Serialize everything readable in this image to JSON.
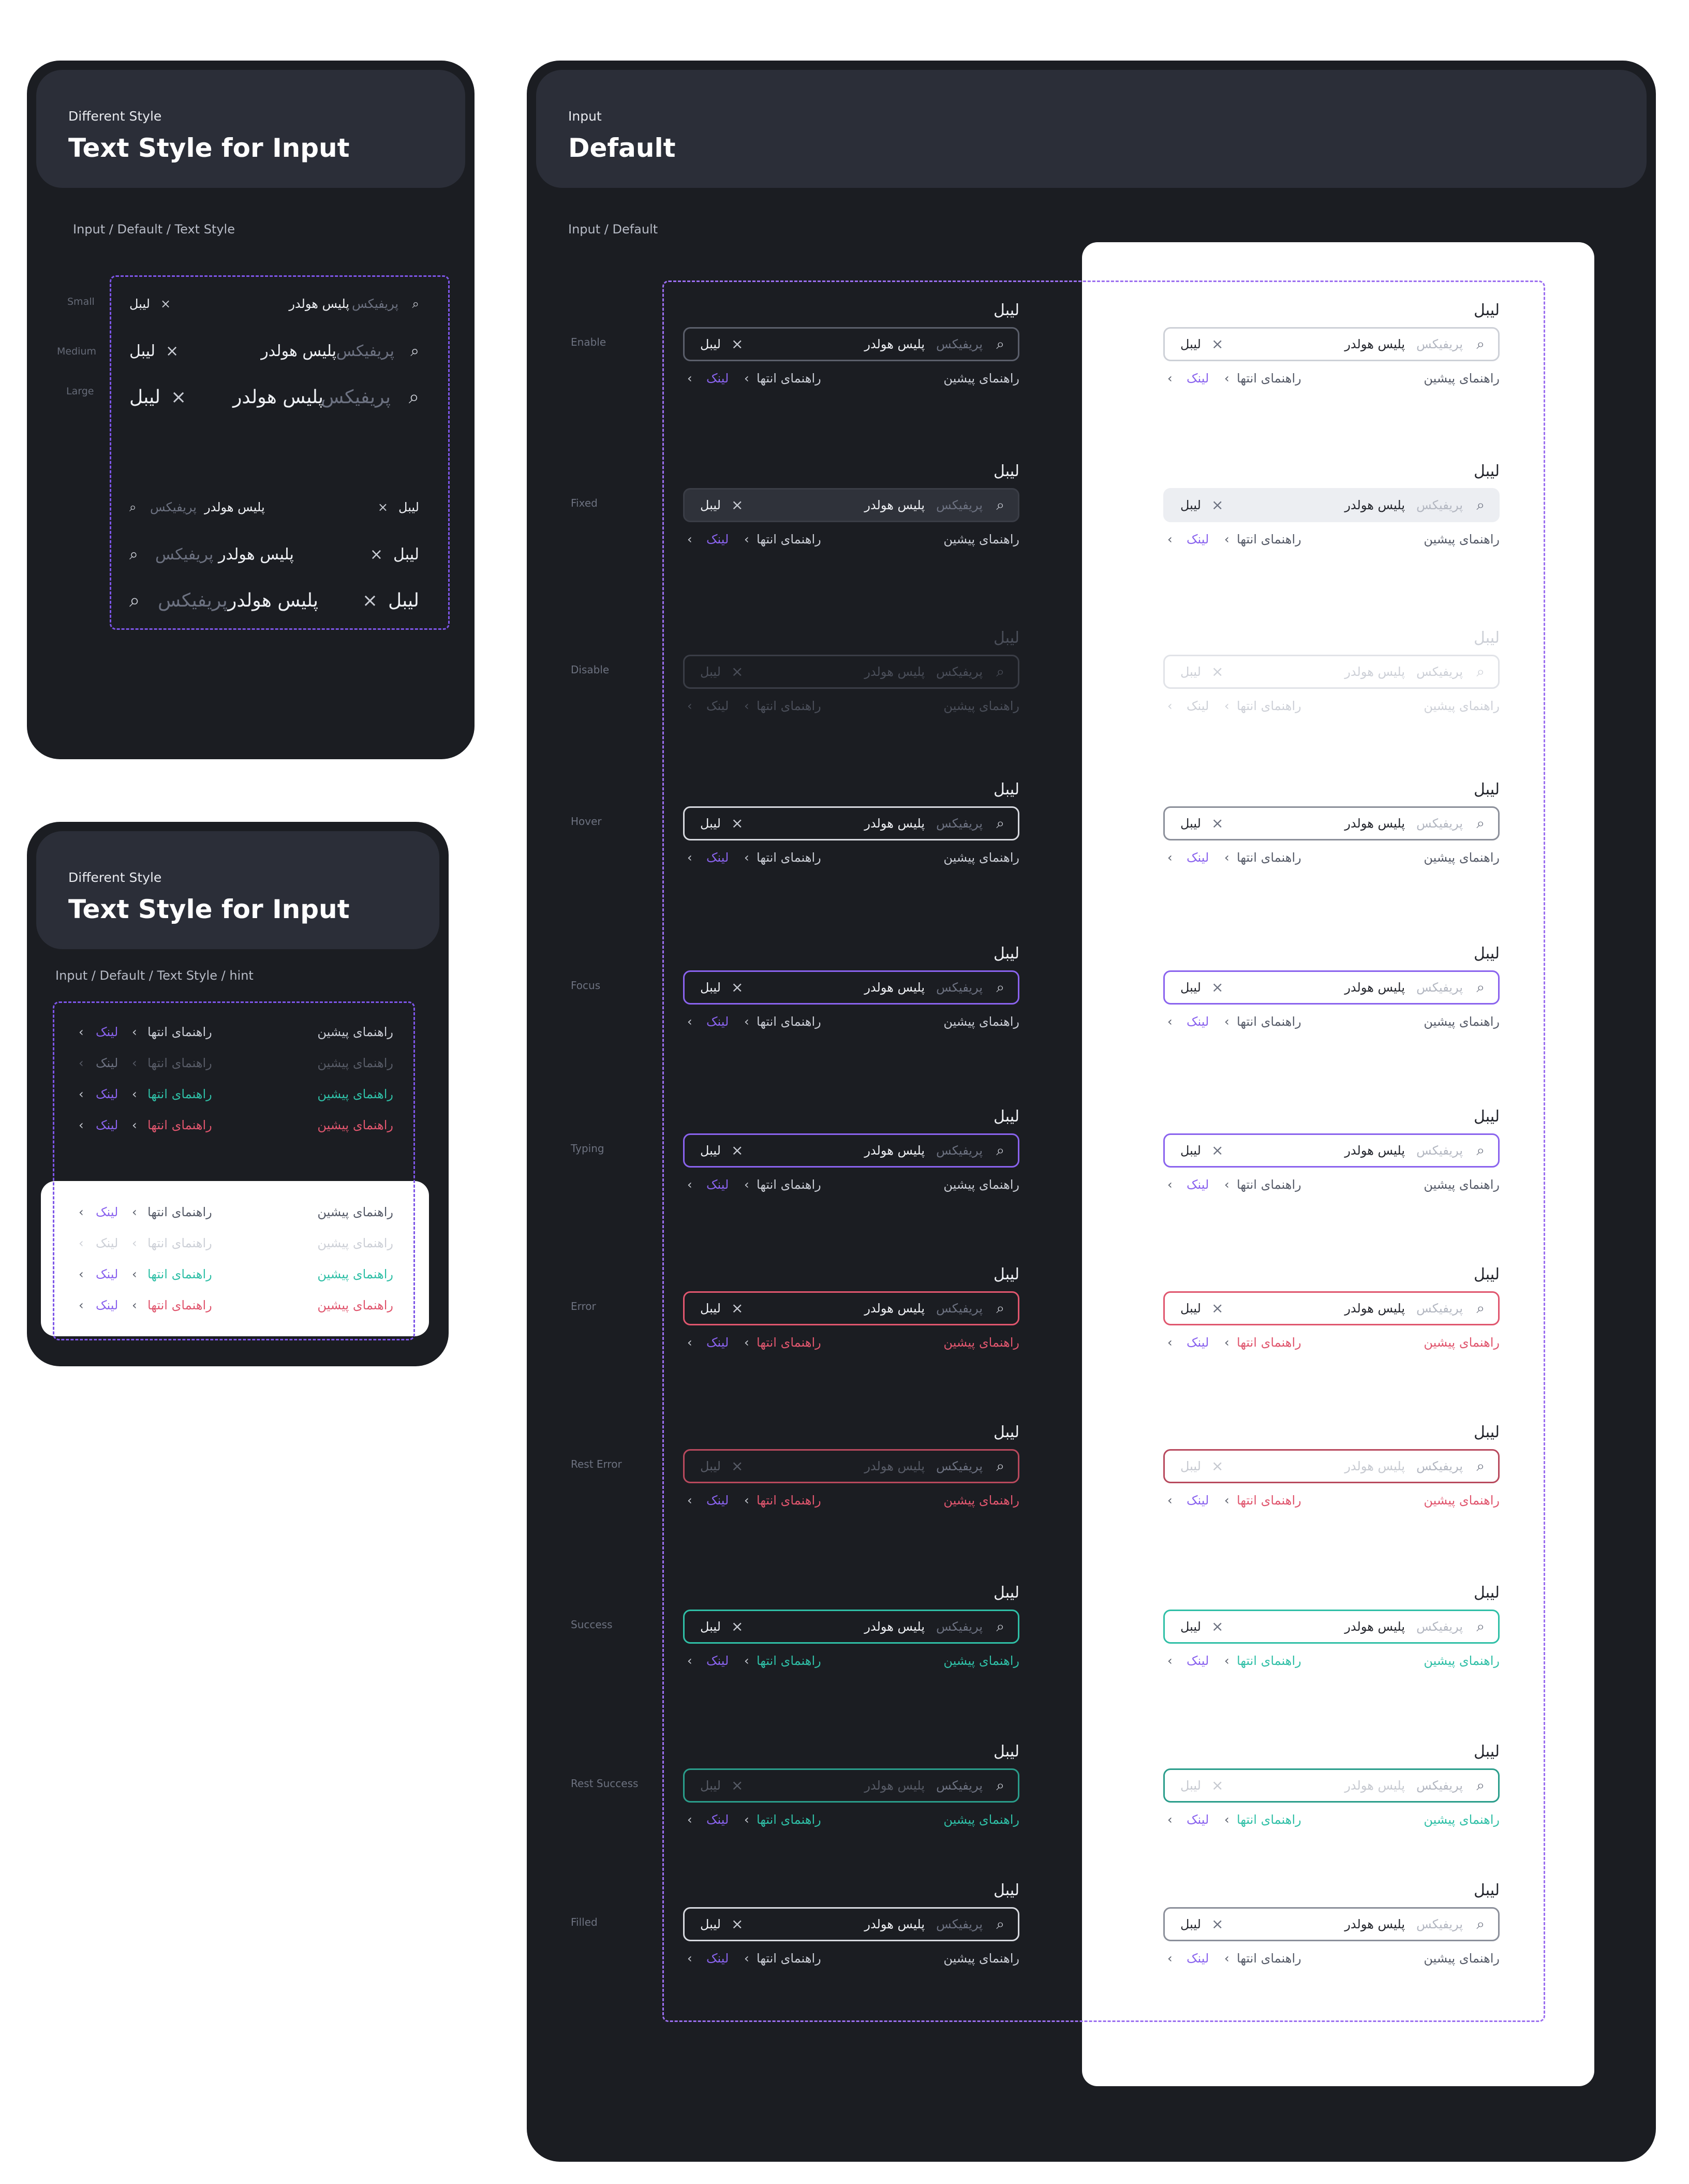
{
  "colors": {
    "canvas": "#1b1d22",
    "header": "#2b2e38",
    "accent": "#8a63ee",
    "error": "#e0566e",
    "success": "#2fbfa6"
  },
  "card1": {
    "subtitle": "Different Style",
    "title": "Text Style for Input",
    "breadcrumb": "Input / Default / Text Style",
    "sizes": [
      "Small",
      "Medium",
      "Large"
    ]
  },
  "card2": {
    "subtitle": "Different Style",
    "title": "Text Style for Input",
    "breadcrumb": "Input / Default / Text Style / hint"
  },
  "main": {
    "subtitle": "Input",
    "title": "Default",
    "breadcrumb": "Input / Default",
    "states": [
      "Enable",
      "Fixed",
      "Disable",
      "Hover",
      "Focus",
      "Typing",
      "Error",
      "Rest Error",
      "Success",
      "Rest Success",
      "Filled"
    ]
  },
  "field": {
    "label": "لیبل",
    "value": "لیبل",
    "placeholder": "پلیس هولدر",
    "prefix": "پریفیکس",
    "hint_start": "راهنمای پیشین",
    "hint_end": "راهنمای انتها",
    "link": "لینک",
    "clear_icon": "×",
    "search_icon": "⌕",
    "chevron_icon": "‹"
  }
}
